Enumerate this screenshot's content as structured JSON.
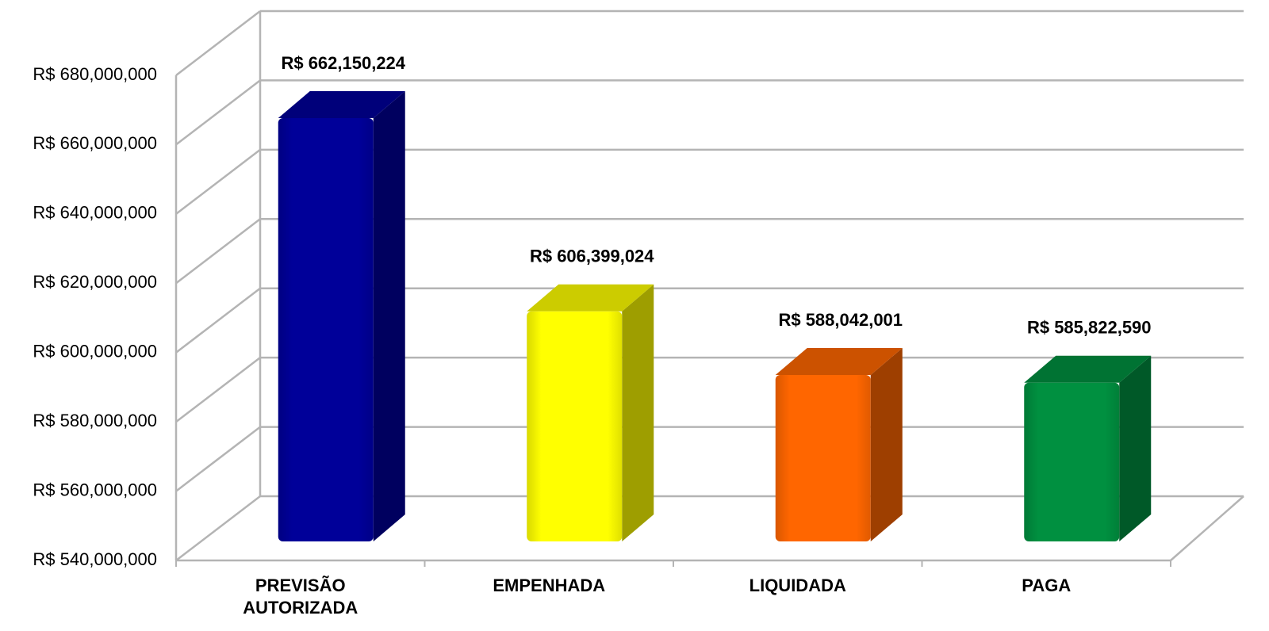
{
  "chart_data": {
    "type": "bar3d",
    "categories": [
      "PREVISÃO AUTORIZADA",
      "EMPENHADA",
      "LIQUIDADA",
      "PAGA"
    ],
    "values": [
      662150224,
      606399024,
      588042001,
      585822590
    ],
    "value_labels": [
      "R$ 662,150,224",
      "R$ 606,399,024",
      "R$ 588,042,001",
      "R$ 585,822,590"
    ],
    "colors": [
      "#000099",
      "#ffff00",
      "#ff6600",
      "#009040"
    ],
    "ylim": [
      540000000,
      680000000
    ],
    "yticks": [
      {
        "value": 540000000,
        "label": "R$ 540,000,000"
      },
      {
        "value": 560000000,
        "label": "R$ 560,000,000"
      },
      {
        "value": 580000000,
        "label": "R$ 580,000,000"
      },
      {
        "value": 600000000,
        "label": "R$ 600,000,000"
      },
      {
        "value": 620000000,
        "label": "R$ 620,000,000"
      },
      {
        "value": 640000000,
        "label": "R$ 640,000,000"
      },
      {
        "value": 660000000,
        "label": "R$ 660,000,000"
      },
      {
        "value": 680000000,
        "label": "R$ 680,000,000"
      }
    ],
    "grid": true
  }
}
